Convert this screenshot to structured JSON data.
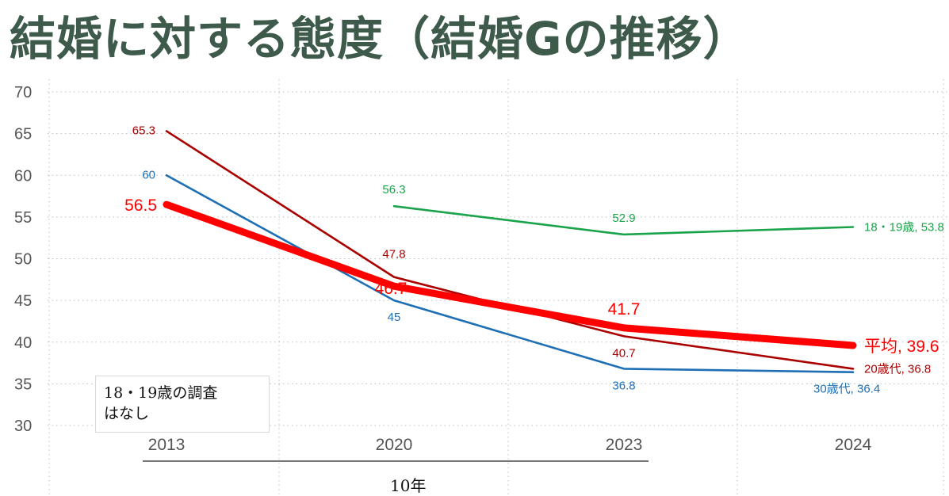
{
  "title": "結婚に対する態度（結婚Gの推移）",
  "note": {
    "line1": "18・19歳の調査",
    "line2": "はなし"
  },
  "span_label": "10年",
  "colors": {
    "title": "#3d5a4a",
    "average": "#ff0000",
    "age20s": "#aa0000",
    "age30s": "#1f6fb5",
    "age1819": "#1aa34a",
    "grid": "#bfbfbf"
  },
  "chart_data": {
    "type": "line",
    "title": "結婚に対する態度（結婚Gの推移）",
    "categories": [
      "2013",
      "2020",
      "2023",
      "2024"
    ],
    "ylim": [
      30,
      70
    ],
    "yticks": [
      "30",
      "35",
      "40",
      "45",
      "50",
      "55",
      "60",
      "65",
      "70"
    ],
    "grid": true,
    "series": [
      {
        "key": "age20s",
        "name": "20歳代",
        "color": "#aa0000",
        "values": [
          65.3,
          47.8,
          40.7,
          36.8
        ],
        "labels": [
          "65.3",
          "47.8",
          "40.7",
          "20歳代, 36.8"
        ]
      },
      {
        "key": "age30s",
        "name": "30歳代",
        "color": "#1f6fb5",
        "values": [
          60,
          45,
          36.8,
          36.4
        ],
        "labels": [
          "60",
          "45",
          "36.8",
          "30歳代, 36.4"
        ]
      },
      {
        "key": "age1819",
        "name": "18・19歳",
        "color": "#1aa34a",
        "values": [
          null,
          56.3,
          52.9,
          53.8
        ],
        "labels": [
          null,
          "56.3",
          "52.9",
          "18・19歳, 53.8"
        ]
      },
      {
        "key": "average",
        "name": "平均",
        "color": "#ff0000",
        "values": [
          56.5,
          46.7,
          41.7,
          39.6
        ],
        "labels": [
          "56.5",
          "46.7",
          "41.7",
          "平均, 39.6"
        ]
      }
    ]
  }
}
